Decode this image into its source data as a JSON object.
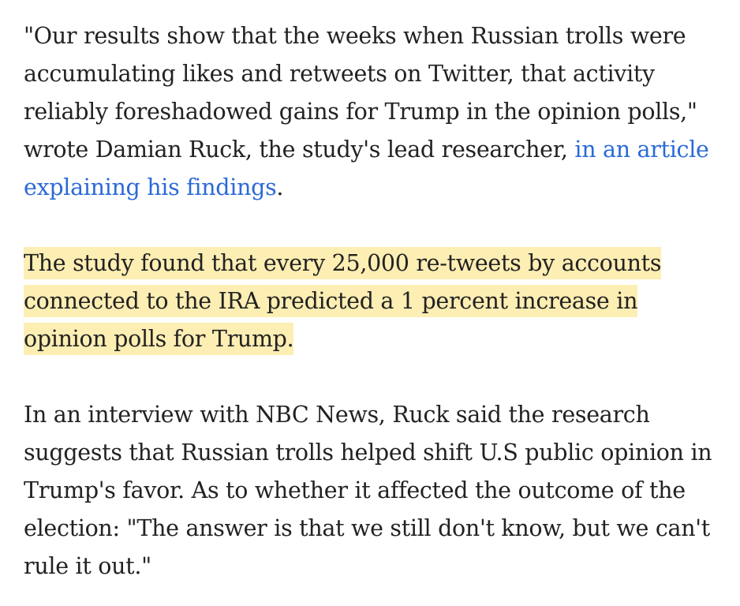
{
  "article": {
    "paragraph_1": {
      "text_before_link": "\"Our results show that the weeks when Russian trolls were accumulating likes and retweets on Twitter, that activity reliably foreshadowed gains for Trump in the opinion polls,\" wrote Damian Ruck, the study's lead researcher, ",
      "link_text": "in an article explaining his findings",
      "text_after_link": "."
    },
    "paragraph_2": {
      "highlighted_text": "The study found that every 25,000 re-tweets by accounts connected to the IRA predicted a 1 percent increase in opinion polls for Trump."
    },
    "paragraph_3": {
      "text": "In an interview with NBC News, Ruck said the research suggests that Russian trolls helped shift U.S public opinion in Trump's favor. As to whether it affected the outcome of the election: \"The answer is that we still don't know, but we can't rule it out.\""
    }
  },
  "colors": {
    "text": "#222222",
    "link": "#2b6ad7",
    "highlight": "#fdeeb3",
    "background": "#ffffff"
  }
}
